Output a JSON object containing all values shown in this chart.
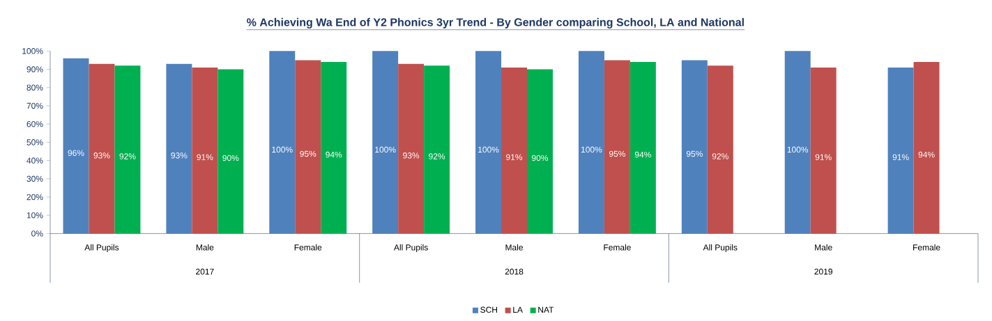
{
  "chart_data": {
    "type": "bar",
    "title": "% Achieving Wa End of Y2 Phonics 3yr Trend - By Gender comparing School, LA and National",
    "categories": [
      "All Pupils",
      "Male",
      "Female",
      "All Pupils",
      "Male",
      "Female",
      "All Pupils",
      "Male",
      "Female"
    ],
    "annotations": [
      "2017",
      "2018",
      "2019"
    ],
    "series": [
      {
        "name": "SCH",
        "color": "#4f81bd",
        "values": [
          96,
          93,
          100,
          100,
          100,
          100,
          95,
          100,
          91
        ],
        "value_labels": [
          "96%",
          "93%",
          "100%",
          "100%",
          "100%",
          "100%",
          "95%",
          "100%",
          "91%"
        ]
      },
      {
        "name": "LA",
        "color": "#c0504d",
        "values": [
          93,
          91,
          95,
          93,
          91,
          95,
          92,
          91,
          94
        ],
        "value_labels": [
          "93%",
          "91%",
          "95%",
          "93%",
          "91%",
          "95%",
          "92%",
          "91%",
          "94%"
        ]
      },
      {
        "name": "NAT",
        "color": "#00b050",
        "values": [
          92,
          90,
          94,
          92,
          90,
          94,
          null,
          null,
          null
        ],
        "value_labels": [
          "92%",
          "90%",
          "94%",
          "92%",
          "90%",
          "94%",
          null,
          null,
          null
        ]
      }
    ],
    "ylim": [
      0,
      100
    ],
    "yticks": [
      {
        "value": 0,
        "label": "0%"
      },
      {
        "value": 10,
        "label": "10%"
      },
      {
        "value": 20,
        "label": "20%"
      },
      {
        "value": 30,
        "label": "30%"
      },
      {
        "value": 40,
        "label": "40%"
      },
      {
        "value": 50,
        "label": "50%"
      },
      {
        "value": 60,
        "label": "60%"
      },
      {
        "value": 70,
        "label": "70%"
      },
      {
        "value": 80,
        "label": "80%"
      },
      {
        "value": 90,
        "label": "90%"
      },
      {
        "value": 100,
        "label": "100%"
      }
    ],
    "grid": false,
    "legend": "bottom"
  }
}
